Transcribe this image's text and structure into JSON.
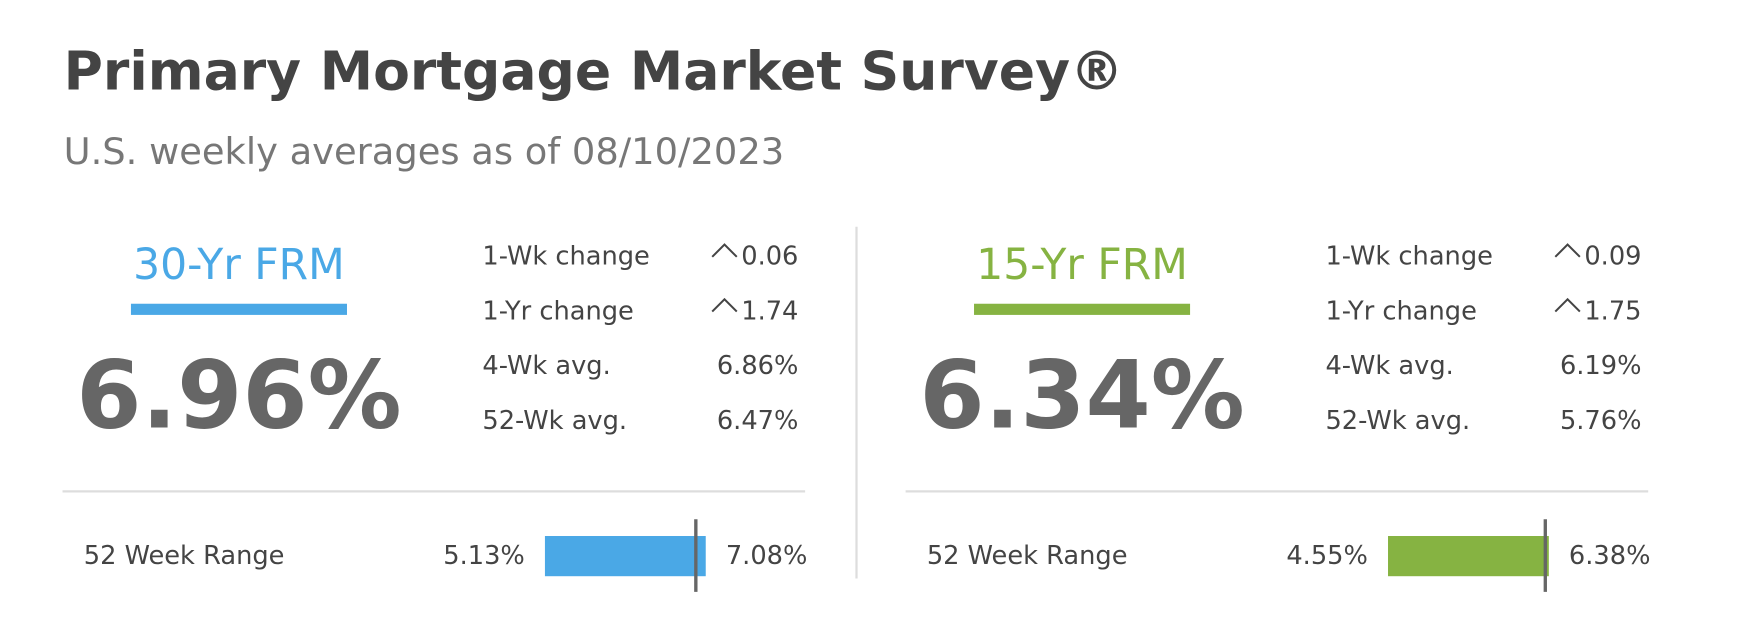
{
  "header": {
    "title": "Primary Mortgage Market Survey®",
    "subtitle": "U.S. weekly averages as of 08/10/2023"
  },
  "panels": [
    {
      "name": "30-Yr FRM",
      "color": "#4aa8e6",
      "rate": {
        "value": 6.96,
        "label": "6.96%"
      },
      "stats": [
        {
          "label": "1-Wk change",
          "value": "0.06",
          "direction": "up"
        },
        {
          "label": "1-Yr change",
          "value": "1.74",
          "direction": "up"
        },
        {
          "label": "4-Wk avg.",
          "value": "6.86%"
        },
        {
          "label": "52-Wk avg.",
          "value": "6.47%"
        }
      ],
      "range": {
        "label": "52 Week Range",
        "low": {
          "value": 5.13,
          "label": "5.13%"
        },
        "high": {
          "value": 7.08,
          "label": "7.08%"
        }
      }
    },
    {
      "name": "15-Yr FRM",
      "color": "#86b342",
      "rate": {
        "value": 6.34,
        "label": "6.34%"
      },
      "stats": [
        {
          "label": "1-Wk change",
          "value": "0.09",
          "direction": "up"
        },
        {
          "label": "1-Yr change",
          "value": "1.75",
          "direction": "up"
        },
        {
          "label": "4-Wk avg.",
          "value": "6.19%"
        },
        {
          "label": "52-Wk avg.",
          "value": "5.76%"
        }
      ],
      "range": {
        "label": "52 Week Range",
        "low": {
          "value": 4.55,
          "label": "4.55%"
        },
        "high": {
          "value": 6.38,
          "label": "6.38%"
        }
      }
    }
  ]
}
